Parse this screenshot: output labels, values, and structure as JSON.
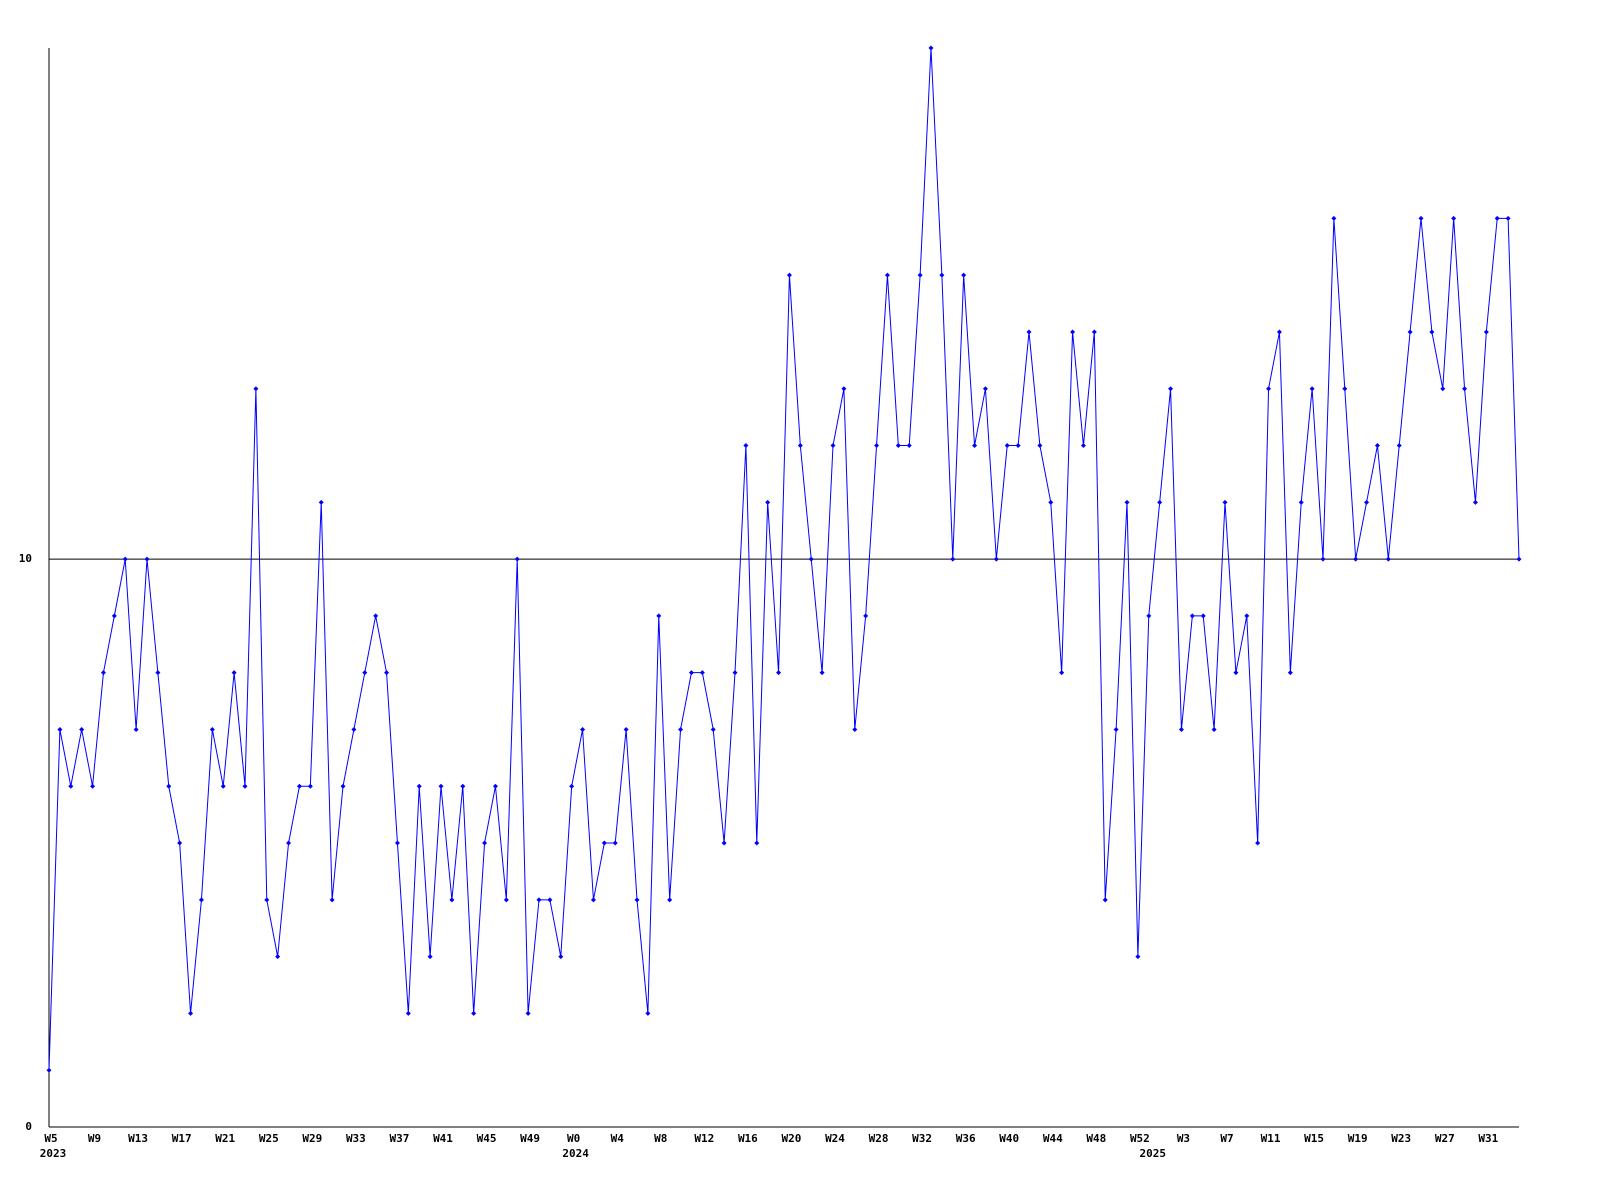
{
  "chart_data": {
    "type": "line",
    "categories": [
      "W5",
      null,
      null,
      null,
      "W9",
      null,
      null,
      null,
      "W13",
      null,
      null,
      null,
      "W17",
      null,
      null,
      null,
      "W21",
      null,
      null,
      null,
      "W25",
      null,
      null,
      null,
      "W29",
      null,
      null,
      null,
      "W33",
      null,
      null,
      null,
      "W37",
      null,
      null,
      null,
      "W41",
      null,
      null,
      null,
      "W45",
      null,
      null,
      null,
      "W49",
      null,
      null,
      null,
      "W0",
      null,
      null,
      null,
      "W4",
      null,
      null,
      null,
      "W8",
      null,
      null,
      null,
      "W12",
      null,
      null,
      null,
      "W16",
      null,
      null,
      null,
      "W20",
      null,
      null,
      null,
      "W24",
      null,
      null,
      null,
      "W28",
      null,
      null,
      null,
      "W32",
      null,
      null,
      null,
      "W36",
      null,
      null,
      null,
      "W40",
      null,
      null,
      null,
      "W44",
      null,
      null,
      null,
      "W48",
      null,
      null,
      null,
      "W52",
      null,
      null,
      null,
      "W3",
      null,
      null,
      null,
      "W7",
      null,
      null,
      null,
      "W11",
      null,
      null,
      null,
      "W15",
      null,
      null,
      null,
      "W19",
      null,
      null,
      null,
      "W23",
      null,
      null,
      null,
      "W27",
      null,
      null,
      null,
      "W31",
      null,
      null,
      null
    ],
    "categories2": [
      "2023",
      null,
      null,
      null,
      null,
      null,
      null,
      null,
      null,
      null,
      null,
      null,
      null,
      null,
      null,
      null,
      null,
      null,
      null,
      null,
      null,
      null,
      null,
      null,
      null,
      null,
      null,
      null,
      null,
      null,
      null,
      null,
      null,
      null,
      null,
      null,
      null,
      null,
      null,
      null,
      null,
      null,
      null,
      null,
      null,
      null,
      null,
      null,
      "2024",
      null,
      null,
      null,
      null,
      null,
      null,
      null,
      null,
      null,
      null,
      null,
      null,
      null,
      null,
      null,
      null,
      null,
      null,
      null,
      null,
      null,
      null,
      null,
      null,
      null,
      null,
      null,
      null,
      null,
      null,
      null,
      null,
      null,
      null,
      null,
      null,
      null,
      null,
      null,
      null,
      null,
      null,
      null,
      null,
      null,
      null,
      null,
      null,
      null,
      null,
      null,
      null,
      "2025",
      null,
      null,
      null,
      null,
      null,
      null,
      null,
      null,
      null,
      null,
      null,
      null,
      null,
      null,
      null,
      null,
      null,
      null,
      null,
      null,
      null,
      null,
      null,
      null,
      null,
      null,
      null,
      null,
      null,
      null,
      null,
      null,
      null
    ],
    "series": [
      {
        "color": "#0000ff",
        "values": [
          1,
          7,
          6,
          7,
          6,
          8,
          9,
          10,
          7,
          10,
          8,
          6,
          5,
          2,
          4,
          7,
          6,
          8,
          6,
          13,
          4,
          3,
          5,
          6,
          6,
          11,
          4,
          6,
          7,
          8,
          9,
          8,
          5,
          2,
          6,
          3,
          6,
          4,
          6,
          2,
          5,
          6,
          4,
          10,
          2,
          4,
          4,
          3,
          6,
          7,
          4,
          5,
          5,
          7,
          4,
          2,
          9,
          4,
          7,
          8,
          8,
          7,
          5,
          8,
          12,
          5,
          11,
          8,
          15,
          12,
          10,
          8,
          12,
          13,
          7,
          9,
          12,
          15,
          12,
          12,
          15,
          19,
          15,
          10,
          15,
          12,
          13,
          10,
          12,
          12,
          14,
          12,
          11,
          8,
          14,
          12,
          14,
          4,
          7,
          11,
          3,
          9,
          11,
          13,
          7,
          9,
          9,
          7,
          11,
          8,
          9,
          5,
          13,
          14,
          8,
          11,
          13,
          10,
          16,
          13,
          10,
          11,
          12,
          10,
          12,
          14,
          16,
          14,
          13,
          16,
          13,
          11,
          14,
          16,
          16,
          10
        ]
      }
    ],
    "ylim": [
      0,
      19
    ],
    "yticks": [
      0,
      10
    ],
    "grid": true
  }
}
